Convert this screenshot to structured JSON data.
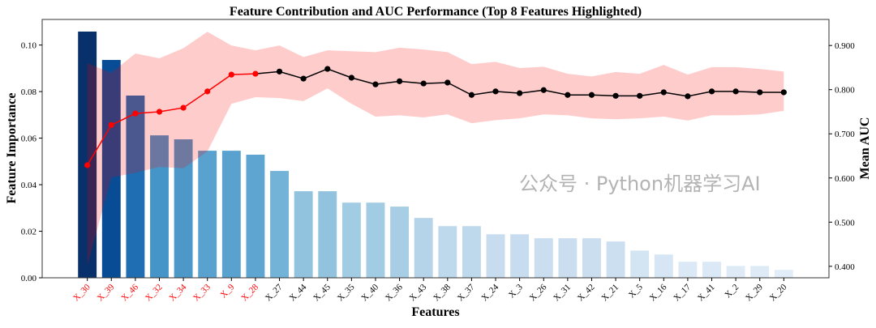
{
  "chart_data": {
    "type": "bar+line",
    "title": "Feature Contribution and AUC Performance (Top 8 Features Highlighted)",
    "xlabel": "Features",
    "ylabel": "Feature Importance",
    "ylabel_right": "Mean AUC",
    "categories": [
      "X_30",
      "X_39",
      "X_46",
      "X_32",
      "X_34",
      "X_33",
      "X_9",
      "X_28",
      "X_27",
      "X_44",
      "X_45",
      "X_35",
      "X_40",
      "X_36",
      "X_43",
      "X_38",
      "X_37",
      "X_24",
      "X_3",
      "X_26",
      "X_31",
      "X_42",
      "X_21",
      "X_5",
      "X_16",
      "X_17",
      "X_41",
      "X_2",
      "X_29",
      "X_20"
    ],
    "highlight_top_n": 8,
    "highlight_color": "#ff0000",
    "importance": [
      0.1059,
      0.0937,
      0.0784,
      0.0613,
      0.0596,
      0.0547,
      0.0547,
      0.053,
      0.046,
      0.0373,
      0.0373,
      0.0324,
      0.0324,
      0.0307,
      0.0258,
      0.0223,
      0.0223,
      0.0188,
      0.0188,
      0.0171,
      0.0171,
      0.0171,
      0.0157,
      0.0118,
      0.0101,
      0.007,
      0.007,
      0.0052,
      0.0052,
      0.0035
    ],
    "mean_auc": [
      0.629,
      0.72,
      0.746,
      0.75,
      0.759,
      0.796,
      0.834,
      0.836,
      0.841,
      0.825,
      0.847,
      0.827,
      0.812,
      0.819,
      0.814,
      0.816,
      0.788,
      0.796,
      0.792,
      0.799,
      0.788,
      0.788,
      0.786,
      0.786,
      0.794,
      0.785,
      0.796,
      0.796,
      0.794,
      0.794
    ],
    "auc_upper": [
      0.86,
      0.838,
      0.882,
      0.871,
      0.894,
      0.931,
      0.9,
      0.889,
      0.9,
      0.874,
      0.889,
      0.887,
      0.885,
      0.895,
      0.891,
      0.885,
      0.858,
      0.863,
      0.849,
      0.852,
      0.836,
      0.83,
      0.84,
      0.836,
      0.856,
      0.834,
      0.851,
      0.851,
      0.847,
      0.841
    ],
    "auc_lower": [
      0.402,
      0.601,
      0.612,
      0.625,
      0.622,
      0.66,
      0.768,
      0.783,
      0.781,
      0.774,
      0.803,
      0.768,
      0.739,
      0.742,
      0.737,
      0.744,
      0.724,
      0.731,
      0.735,
      0.744,
      0.742,
      0.735,
      0.733,
      0.735,
      0.739,
      0.73,
      0.742,
      0.742,
      0.744,
      0.752
    ],
    "ylim": [
      0,
      0.111
    ],
    "ylim_right": [
      0.374,
      0.959
    ],
    "yticks": [
      "0.00",
      "0.02",
      "0.04",
      "0.06",
      "0.08",
      "0.10"
    ],
    "yticks_right": [
      "0.400",
      "0.500",
      "0.600",
      "0.700",
      "0.800",
      "0.900"
    ],
    "bar_colormap": "Blues",
    "band_color": "#ff0000",
    "line_color_top": "#ff0000",
    "line_color_rest": "#000000",
    "grid": false
  },
  "watermark": "公众号 · Python机器学习AI"
}
